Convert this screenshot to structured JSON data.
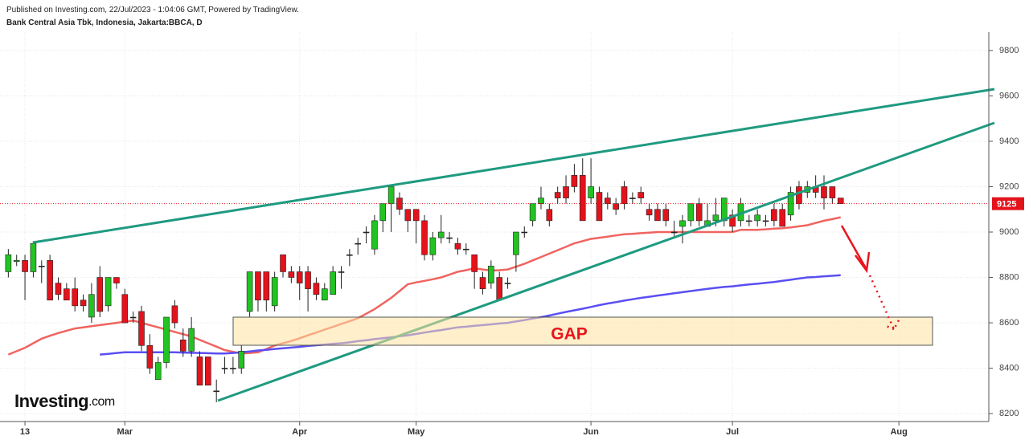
{
  "header": {
    "published": "Published on Investing.com, 22/Jul/2023 - 1:04:06 GMT, Powered by TradingView.",
    "symbol": "Bank Central Asia Tbk, Indonesia, Jakarta:BBCA, D"
  },
  "logo": {
    "name": "Investing",
    "suffix": ".com"
  },
  "chart_data": {
    "type": "candlestick",
    "categories": [
      null,
      null,
      null,
      null,
      null,
      null,
      null,
      null,
      null,
      null,
      null,
      null,
      null,
      null,
      null,
      null,
      null,
      null,
      null,
      null,
      null,
      null,
      null,
      null,
      null,
      null,
      null,
      null,
      null,
      null,
      null,
      null,
      null,
      null,
      null,
      null,
      null,
      null,
      null,
      null,
      null,
      null,
      null,
      null,
      null,
      null,
      null,
      null,
      null,
      null,
      null,
      null,
      null,
      null,
      null,
      null,
      null,
      null,
      null,
      null,
      null,
      null,
      null,
      null,
      null,
      null,
      null,
      null,
      null,
      null,
      null,
      null,
      null,
      null,
      null,
      null,
      null,
      null,
      null,
      null,
      null,
      null,
      null,
      null,
      null,
      null,
      null,
      null,
      null,
      null,
      null,
      null,
      null,
      null,
      null,
      null,
      null,
      null,
      null,
      null,
      null
    ],
    "open": [
      8825,
      8870,
      8875,
      8825,
      8850,
      8875,
      8775,
      8750,
      8750,
      8700,
      8625,
      8800,
      8675,
      8800,
      8725,
      8625,
      8650,
      8500,
      8350,
      8425,
      8675,
      8525,
      8475,
      8450,
      8450,
      8300,
      8400,
      8400,
      8400,
      8650,
      8825,
      8825,
      8675,
      8900,
      8825,
      8825,
      8825,
      8775,
      8700,
      8725,
      8825,
      8900,
      8950,
      9000,
      8925,
      9050,
      9125,
      9150,
      9100,
      9100,
      9050,
      8900,
      8975,
      8975,
      8950,
      8925,
      8900,
      8800,
      8775,
      8800,
      8775,
      8900,
      9000,
      9050,
      9125,
      9100,
      9175,
      9200,
      9250,
      9250,
      9150,
      9175,
      9150,
      9125,
      9200,
      9150,
      9175,
      9100,
      9100,
      9100,
      9000,
      9025,
      9050,
      9125,
      9025,
      9050,
      9050,
      9075,
      9050,
      9050,
      9050,
      9050,
      9100,
      9100,
      9075,
      9200,
      9175,
      9200,
      9200,
      9200,
      9150
    ],
    "high": [
      8925,
      8900,
      8900,
      8960,
      8875,
      8900,
      8800,
      8775,
      8800,
      8725,
      8775,
      8850,
      8800,
      8800,
      8750,
      8650,
      8675,
      8550,
      8450,
      8625,
      8700,
      8575,
      8625,
      8475,
      8450,
      8350,
      8450,
      8450,
      8500,
      8825,
      8825,
      8825,
      8825,
      8900,
      8850,
      8850,
      8850,
      8800,
      8775,
      8850,
      8850,
      8925,
      8975,
      9025,
      9075,
      9125,
      9200,
      9175,
      9100,
      9100,
      9075,
      9000,
      9075,
      9000,
      8975,
      8950,
      8900,
      8825,
      8875,
      8825,
      8800,
      9000,
      9025,
      9125,
      9200,
      9125,
      9200,
      9250,
      9300,
      9325,
      9325,
      9200,
      9175,
      9150,
      9225,
      9175,
      9200,
      9125,
      9125,
      9125,
      9050,
      9075,
      9125,
      9150,
      9125,
      9150,
      9150,
      9100,
      9150,
      9075,
      9100,
      9075,
      9125,
      9125,
      9200,
      9225,
      9225,
      9250,
      9250,
      9200,
      9150
    ],
    "low": [
      8800,
      8850,
      8700,
      8800,
      8775,
      8700,
      8700,
      8700,
      8650,
      8650,
      8600,
      8625,
      8650,
      8750,
      8600,
      8600,
      8475,
      8375,
      8350,
      8400,
      8575,
      8450,
      8450,
      8325,
      8325,
      8250,
      8375,
      8375,
      8375,
      8625,
      8650,
      8650,
      8650,
      8800,
      8775,
      8700,
      8650,
      8700,
      8700,
      8725,
      8750,
      8850,
      8900,
      8950,
      8900,
      9000,
      9000,
      9075,
      9000,
      8950,
      8875,
      8875,
      8950,
      8950,
      8900,
      8900,
      8750,
      8725,
      8750,
      8700,
      8750,
      8825,
      8975,
      9025,
      9100,
      9025,
      9125,
      9125,
      9175,
      9050,
      9125,
      9050,
      9100,
      9075,
      9100,
      9125,
      9125,
      9050,
      9050,
      9025,
      8975,
      8950,
      9025,
      9025,
      9025,
      9025,
      9025,
      9000,
      9025,
      9025,
      9025,
      9025,
      9025,
      9025,
      9050,
      9100,
      9150,
      9150,
      9100,
      9125,
      9125
    ],
    "close": [
      8900,
      8875,
      8825,
      8950,
      8850,
      8700,
      8725,
      8700,
      8675,
      8675,
      8725,
      8650,
      8800,
      8775,
      8600,
      8625,
      8500,
      8400,
      8425,
      8625,
      8600,
      8475,
      8575,
      8325,
      8325,
      8300,
      8400,
      8400,
      8475,
      8825,
      8700,
      8700,
      8800,
      8825,
      8800,
      8775,
      8750,
      8725,
      8750,
      8825,
      8825,
      8900,
      8950,
      9000,
      9050,
      9125,
      9200,
      9100,
      9050,
      9050,
      8900,
      8975,
      9000,
      8975,
      8925,
      8925,
      8825,
      8750,
      8850,
      8700,
      8775,
      9000,
      9000,
      9125,
      9150,
      9050,
      9150,
      9150,
      9200,
      9050,
      9200,
      9050,
      9125,
      9100,
      9125,
      9150,
      9150,
      9075,
      9050,
      9050,
      9000,
      9050,
      9125,
      9050,
      9050,
      9075,
      9150,
      9025,
      9125,
      9050,
      9075,
      9050,
      9050,
      9025,
      9175,
      9125,
      9200,
      9175,
      9150,
      9150,
      9125
    ],
    "up_color": "#22c322",
    "down_color": "#e3131c",
    "series": [
      {
        "color": "#f06460",
        "values": [
          8460,
          8475,
          8490,
          8510,
          8530,
          8543,
          8555,
          8565,
          8575,
          8580,
          8585,
          8590,
          8595,
          8600,
          8605,
          8610,
          8600,
          8590,
          8580,
          8570,
          8560,
          8550,
          8540,
          8525,
          8510,
          8495,
          8480,
          8472,
          8465,
          8467,
          8470,
          8485,
          8500,
          8510,
          8520,
          8532,
          8545,
          8557,
          8570,
          8582,
          8595,
          8607,
          8620,
          8640,
          8660,
          8685,
          8710,
          8740,
          8770,
          8778,
          8785,
          8792,
          8800,
          8812,
          8825,
          8832,
          8840,
          8835,
          8830,
          8832,
          8835,
          8847,
          8860,
          8875,
          8890,
          8905,
          8920,
          8935,
          8950,
          8960,
          8970,
          8975,
          8980,
          8985,
          8990,
          8992,
          8995,
          8997,
          9000,
          9000,
          9000,
          9000,
          9000,
          9000,
          9000,
          9000,
          9000,
          9000,
          9010,
          9010,
          9010,
          9012,
          9015,
          9017,
          9020,
          9025,
          9030,
          9040,
          9050,
          9057,
          9065
        ]
      },
      {
        "color": "#5a4ff2",
        "values": [
          null,
          null,
          null,
          null,
          null,
          null,
          null,
          null,
          null,
          null,
          null,
          8460,
          8463,
          8467,
          8470,
          8470,
          8470,
          8470,
          8470,
          8470,
          8470,
          8469,
          8468,
          8467,
          8466,
          8465,
          8465,
          8467,
          8470,
          8474,
          8478,
          8481,
          8485,
          8488,
          8491,
          8494,
          8498,
          8501,
          8504,
          8507,
          8510,
          8514,
          8519,
          8523,
          8528,
          8532,
          8536,
          8541,
          8545,
          8551,
          8557,
          8563,
          8568,
          8574,
          8580,
          8583,
          8587,
          8590,
          8593,
          8597,
          8600,
          8606,
          8612,
          8619,
          8625,
          8632,
          8640,
          8648,
          8655,
          8662,
          8670,
          8678,
          8685,
          8691,
          8698,
          8704,
          8710,
          8715,
          8720,
          8725,
          8730,
          8735,
          8740,
          8745,
          8750,
          8754,
          8758,
          8761,
          8765,
          8769,
          8772,
          8776,
          8780,
          8785,
          8790,
          8795,
          8800,
          8802,
          8805,
          8807,
          8810
        ]
      }
    ],
    "last_price": 9125,
    "annotation": "GAP",
    "xlim": [
      -1,
      117.8
    ],
    "xticks": [
      {
        "value": 2,
        "label": "13"
      },
      {
        "value": 14,
        "label": "Mar"
      },
      {
        "value": 35,
        "label": "Apr"
      },
      {
        "value": 49,
        "label": "May"
      },
      {
        "value": 70,
        "label": "Jun"
      },
      {
        "value": 87,
        "label": "Jul"
      },
      {
        "value": 107,
        "label": "Aug"
      }
    ],
    "ylim": [
      8165,
      9881
    ],
    "yticks": [
      8200,
      8400,
      8600,
      8800,
      9000,
      9200,
      9400,
      9600,
      9800
    ],
    "grid": true
  }
}
